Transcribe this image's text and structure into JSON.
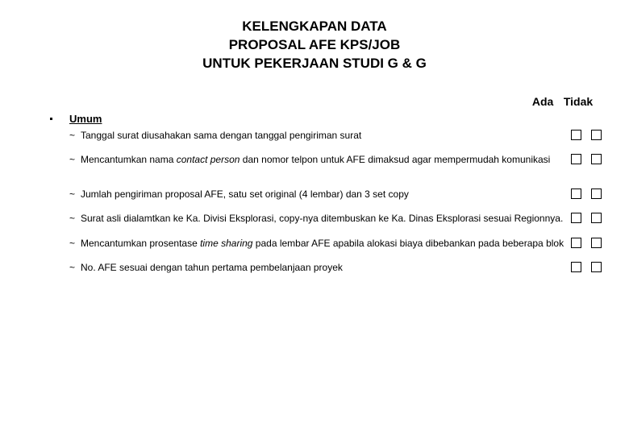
{
  "title": {
    "line1": "KELENGKAPAN DATA",
    "line2": "PROPOSAL  AFE KPS/JOB",
    "line3": "UNTUK PEKERJAAN STUDI G & G"
  },
  "headers": {
    "ada": "Ada",
    "tidak": "Tidak"
  },
  "section": {
    "title": "Umum",
    "items": [
      {
        "text_parts": [
          {
            "t": "Tanggal surat diusahakan  sama dengan tanggal pengiriman surat",
            "italic": false
          }
        ]
      },
      {
        "text_parts": [
          {
            "t": "Mencantumkan nama ",
            "italic": false
          },
          {
            "t": "contact person",
            "italic": true
          },
          {
            "t": "  dan nomor telpon untuk AFE dimaksud agar mempermudah komunikasi",
            "italic": false
          }
        ]
      },
      {
        "text_parts": [
          {
            "t": "Jumlah pengiriman proposal AFE, satu set original (4 lembar) dan 3 set copy",
            "italic": false
          }
        ]
      },
      {
        "text_parts": [
          {
            "t": "Surat asli dialamtkan ke Ka. Divisi Eksplorasi, copy-nya ditembuskan ke Ka. Dinas Eksplorasi sesuai Regionnya.",
            "italic": false
          }
        ]
      },
      {
        "text_parts": [
          {
            "t": "Mencantumkan prosentase ",
            "italic": false
          },
          {
            "t": "time sharing",
            "italic": true
          },
          {
            "t": "  pada lembar AFE apabila alokasi biaya dibebankan pada beberapa blok",
            "italic": false
          }
        ]
      },
      {
        "text_parts": [
          {
            "t": "No. AFE sesuai dengan tahun pertama pembelanjaan proyek",
            "italic": false
          }
        ]
      }
    ]
  }
}
